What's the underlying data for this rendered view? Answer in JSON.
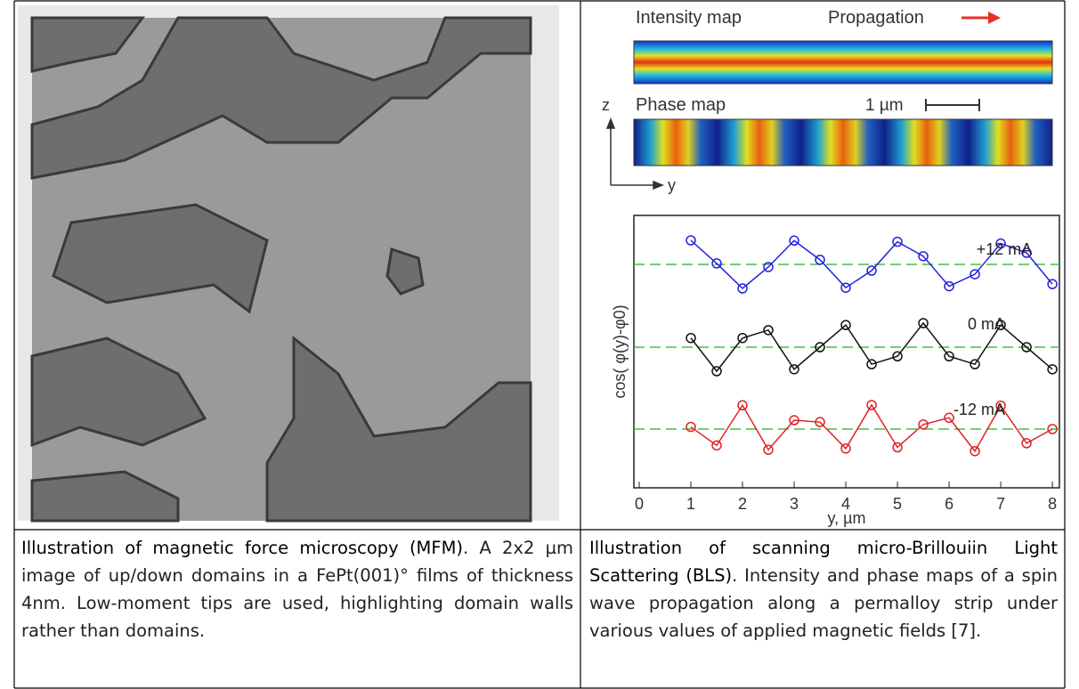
{
  "left": {
    "caption": {
      "title": "Illustration of magnetic force microscopy (MFM)",
      "body": ". A 2x2 µm image of up/down domains in a FePt(001)° films of thickness 4nm. Low-moment tips are used, highlighting domain walls rather than domains."
    }
  },
  "right": {
    "figure": {
      "intensity_label": "Intensity map",
      "propagation_label": "Propagation",
      "z_label": "z",
      "phase_label": "Phase map",
      "scale_label": "1 µm",
      "y_label": "y",
      "plot": {
        "type": "line",
        "ylabel": "cos( φ(y)-φ0)",
        "xlabel": "y, µm",
        "xlim": [
          0,
          8.05
        ],
        "xticks": [
          0,
          1,
          2,
          3,
          4,
          5,
          6,
          7,
          8
        ],
        "ylim": [
          -1,
          1
        ],
        "x": [
          1,
          1.5,
          2,
          2.5,
          3,
          3.5,
          4,
          4.5,
          5,
          5.5,
          6,
          6.5,
          7,
          7.5,
          8
        ],
        "series": [
          {
            "name": "+12 mA",
            "color": "#2222dd",
            "values": [
              1,
              0.04,
              -1,
              -0.11,
              0.99,
              0.19,
              -0.97,
              -0.26,
              0.94,
              0.34,
              -0.91,
              -0.41,
              0.87,
              0.48,
              -0.82
            ]
          },
          {
            "name": "0 mA",
            "color": "#111111",
            "values": [
              0.38,
              -1,
              0.38,
              0.71,
              -0.92,
              0,
              0.92,
              -0.71,
              -0.38,
              1,
              -0.38,
              -0.71,
              0.92,
              0,
              -0.92
            ]
          },
          {
            "name": "-12 mA",
            "color": "#dd2222",
            "values": [
              0.09,
              -0.68,
              0.99,
              -0.86,
              0.37,
              0.29,
              -0.81,
              1,
              -0.76,
              0.19,
              0.47,
              -0.92,
              0.97,
              -0.59,
              0
            ]
          }
        ]
      }
    },
    "caption": {
      "title": "Illustration of scanning micro-Brillouiin Light Scattering (BLS)",
      "body": ". Intensity and phase maps of a spin wave propagation along a permalloy strip under various values of applied magnetic fields [7]."
    }
  }
}
